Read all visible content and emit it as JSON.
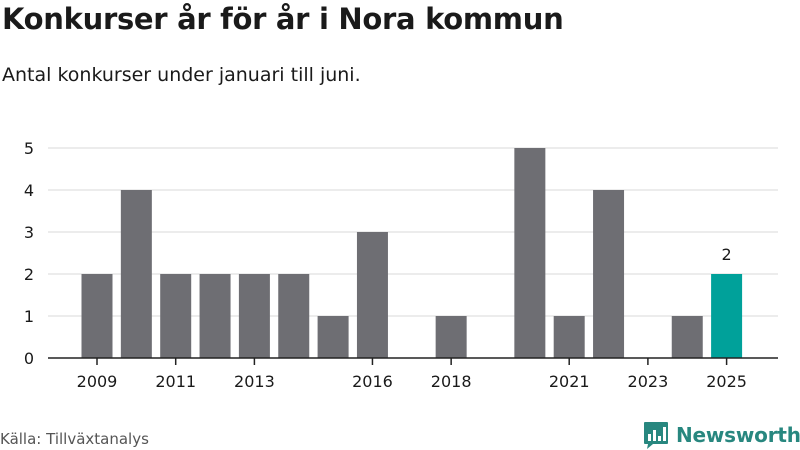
{
  "header": {
    "title": "Konkurser år för år i Nora kommun",
    "subtitle": "Antal konkurser under januari till juni."
  },
  "footer": {
    "source": "Källa: Tillväxtanalys",
    "brand": "Newsworthy",
    "brand_icon": "bar-chart-logo-icon"
  },
  "colors": {
    "bar": "#6e6e73",
    "highlight": "#00a19a",
    "grid": "#d9d9d9",
    "axis": "#222222",
    "brand": "#28877f"
  },
  "chart_data": {
    "type": "bar",
    "categories": [
      2009,
      2010,
      2011,
      2012,
      2013,
      2014,
      2015,
      2016,
      2017,
      2018,
      2019,
      2020,
      2021,
      2022,
      2023,
      2024,
      2025
    ],
    "values": [
      2,
      4,
      2,
      2,
      2,
      2,
      1,
      3,
      0,
      1,
      0,
      5,
      1,
      4,
      0,
      1,
      2
    ],
    "x_tick_labels": [
      "2009",
      "2011",
      "2013",
      "2016",
      "2018",
      "2021",
      "2023",
      "2025"
    ],
    "y_ticks": [
      "0",
      "1",
      "2",
      "3",
      "4",
      "5"
    ],
    "ylim": [
      0,
      5
    ],
    "highlight_category": 2025,
    "highlight_label": "2",
    "grid": true,
    "legend": "none"
  }
}
